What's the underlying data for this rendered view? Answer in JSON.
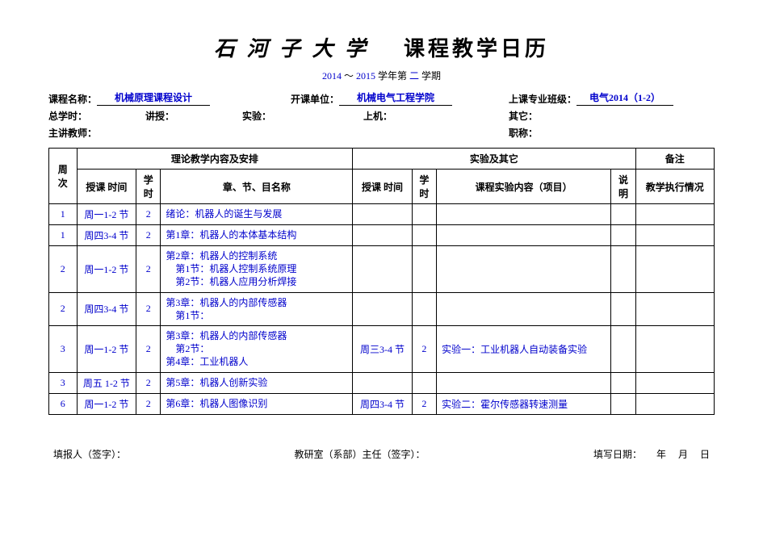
{
  "header": {
    "university": "石 河 子 大 学",
    "title": "课程教学日历",
    "year_from": "2014",
    "tilde": "～",
    "year_to": "2015",
    "semester_pre": "学年第",
    "semester_num": "二",
    "semester_post": "学期"
  },
  "info": {
    "course_label": "课程名称：",
    "course_value": "机械原理课程设计",
    "dept_label": "开课单位：",
    "dept_value": "机械电气工程学院",
    "class_label": "上课专业班级：",
    "class_value": "电气2014（1-2）",
    "total_hours_label": "总学时：",
    "lecture_label": "讲授：",
    "lab_label": "实验：",
    "computer_label": "上机：",
    "other_label": "其它：",
    "teacher_label": "主讲教师：",
    "title2_label": "职称："
  },
  "table": {
    "head": {
      "week": "周 次",
      "theory": "理论教学内容及安排",
      "experiment": "实验及其它",
      "remark": "备注",
      "teach_time": "授课 时间",
      "hours": "学 时",
      "chapter": "章、节、目名称",
      "exp_content": "课程实验内容（项目）",
      "note": "说 明",
      "exec": "教学执行情况"
    },
    "rows": [
      {
        "week": "1",
        "time": "周一1-2 节",
        "hours": "2",
        "chapter": "绪论：机器人的诞生与发展",
        "time2": "",
        "hours2": "",
        "exp": "",
        "note": "",
        "exec": ""
      },
      {
        "week": "1",
        "time": "周四3-4 节",
        "hours": "2",
        "chapter": "第1章：机器人的本体基本结构",
        "time2": "",
        "hours2": "",
        "exp": "",
        "note": "",
        "exec": ""
      },
      {
        "week": "2",
        "time": "周一1-2 节",
        "hours": "2",
        "chapter": "第2章：机器人的控制系统\n　第1节：机器人控制系统原理\n　第2节：机器人应用分析焊接",
        "time2": "",
        "hours2": "",
        "exp": "",
        "note": "",
        "exec": ""
      },
      {
        "week": "2",
        "time": "周四3-4 节",
        "hours": "2",
        "chapter": "第3章：机器人的内部传感器\n　第1节：",
        "time2": "",
        "hours2": "",
        "exp": "",
        "note": "",
        "exec": ""
      },
      {
        "week": "3",
        "time": "周一1-2 节",
        "hours": "2",
        "chapter": "第3章：机器人的内部传感器\n　第2节：\n第4章：工业机器人",
        "time2": "周三3-4 节",
        "hours2": "2",
        "exp": "实验一：工业机器人自动装备实验",
        "note": "",
        "exec": ""
      },
      {
        "week": "3",
        "time": "周五 1-2 节",
        "hours": "2",
        "chapter": "第5章：机器人创新实验",
        "time2": "",
        "hours2": "",
        "exp": "",
        "note": "",
        "exec": ""
      },
      {
        "week": "6",
        "time": "周一1-2 节",
        "hours": "2",
        "chapter": "第6章：机器人图像识别",
        "time2": "周四3-4 节",
        "hours2": "2",
        "exp": "实验二：霍尔传感器转速测量",
        "note": "",
        "exec": ""
      }
    ]
  },
  "footer": {
    "reporter": "填报人（签字）：",
    "director": "教研室（系部）主任（签字）：",
    "date_label": "填写日期：",
    "year": "年",
    "month": "月",
    "day": "日"
  },
  "styling": {
    "text_color": "#000000",
    "accent_color": "#0000cc",
    "background": "#ffffff",
    "border_color": "#000000",
    "title_fontsize": 26,
    "body_fontsize": 12
  }
}
